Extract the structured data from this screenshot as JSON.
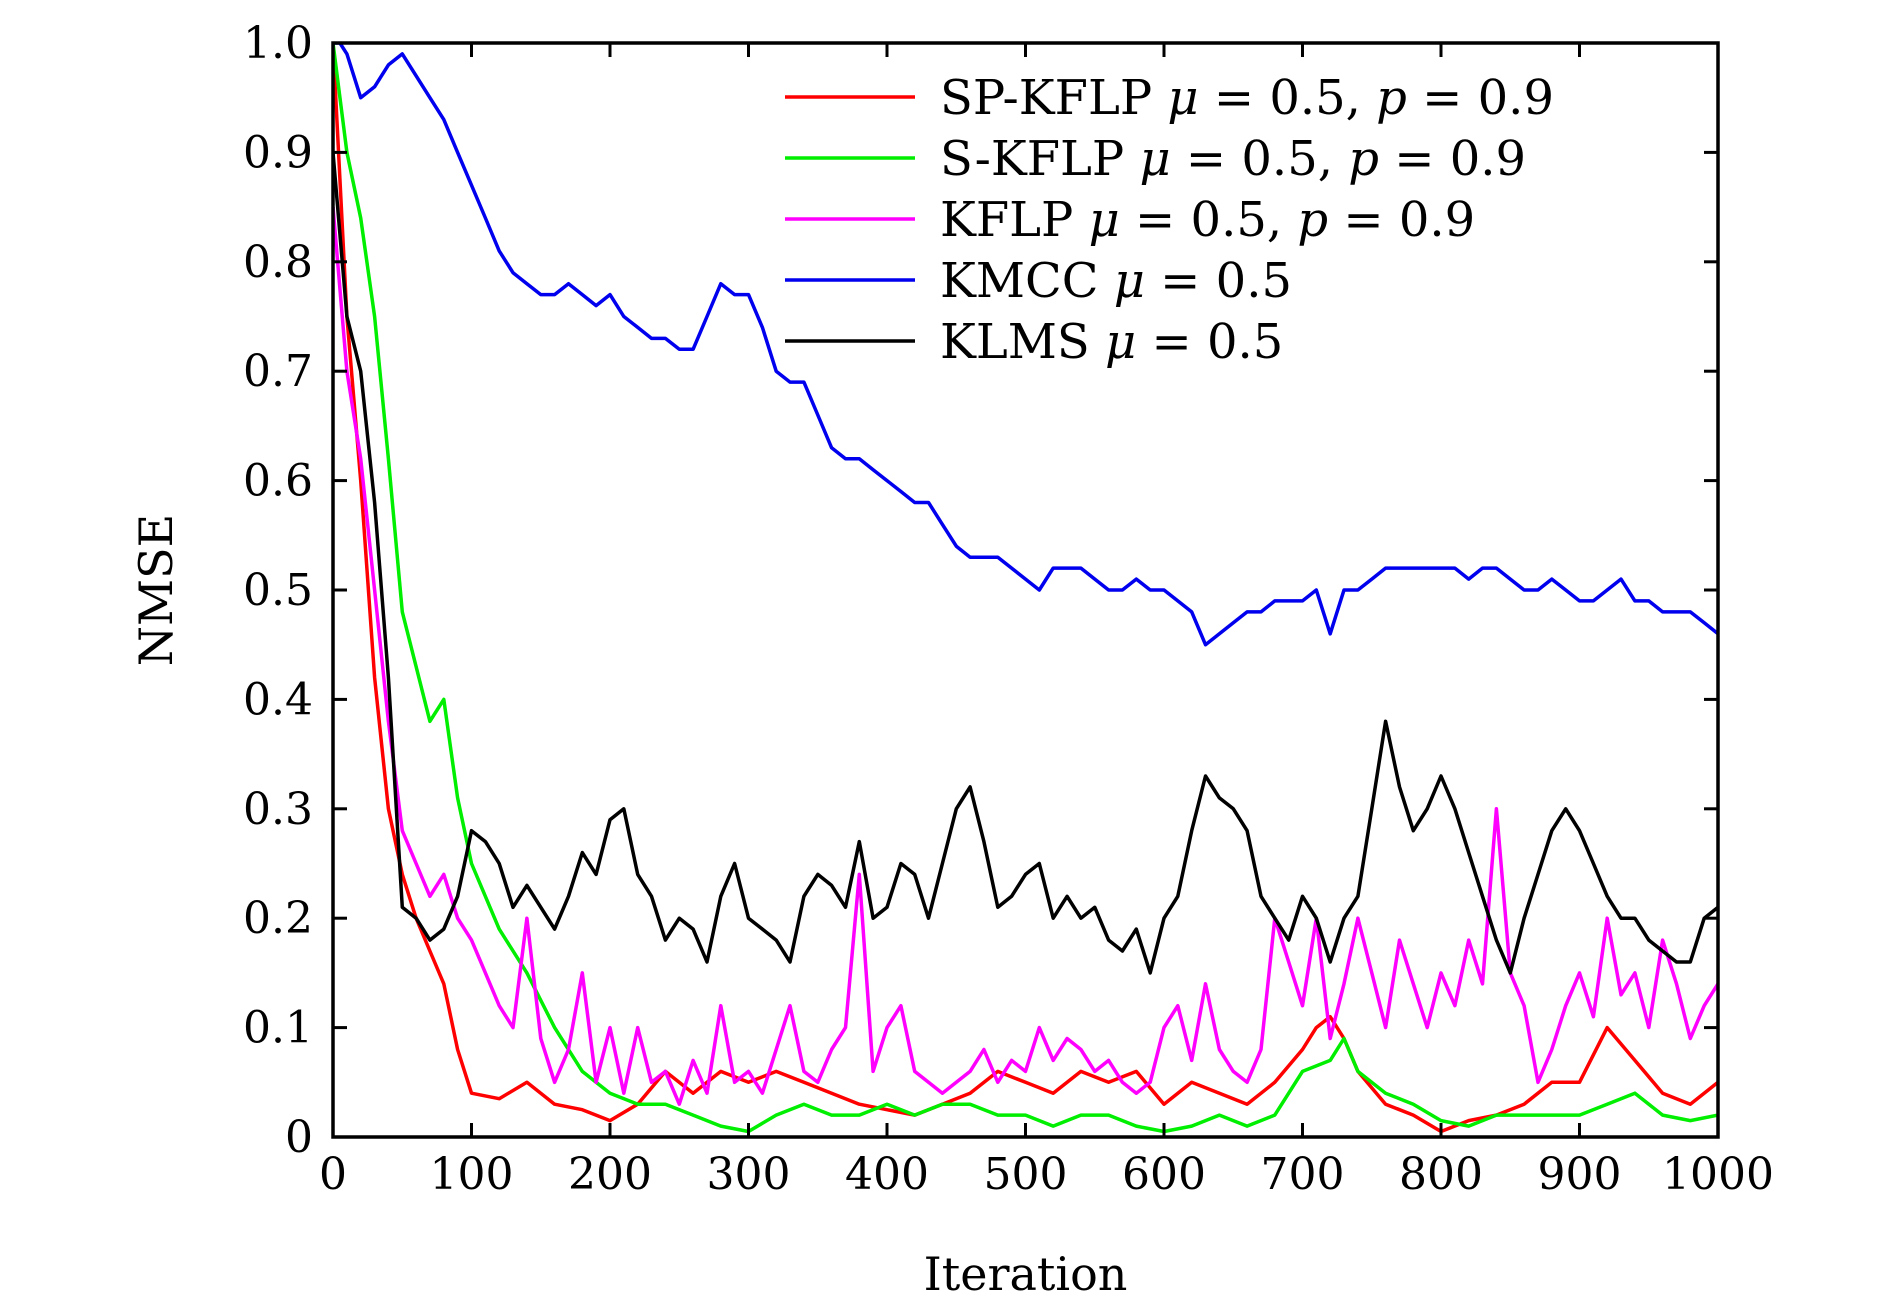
{
  "chart_data": {
    "type": "line",
    "title": "",
    "xlabel": "Iteration",
    "ylabel": "NMSE",
    "xlim": [
      0,
      1000
    ],
    "ylim": [
      0,
      1.0
    ],
    "grid": false,
    "legend_position": "top-right",
    "x_ticks": [
      0,
      100,
      200,
      300,
      400,
      500,
      600,
      700,
      800,
      900,
      1000
    ],
    "x_tick_labels": [
      "0",
      "100",
      "200",
      "300",
      "400",
      "500",
      "600",
      "700",
      "800",
      "900",
      "1000"
    ],
    "y_ticks": [
      0,
      0.1,
      0.2,
      0.3,
      0.4,
      0.5,
      0.6,
      0.7,
      0.8,
      0.9,
      1.0
    ],
    "y_tick_labels": [
      "0",
      "0.1",
      "0.2",
      "0.3",
      "0.4",
      "0.5",
      "0.6",
      "0.7",
      "0.8",
      "0.9",
      "1.0"
    ],
    "series": [
      {
        "name": "SP-KFLP",
        "legend_parts": [
          "SP-KFLP ",
          "μ",
          " = 0.5, ",
          "p",
          " = 0.9"
        ],
        "color": "#ff0000",
        "x": [
          0,
          10,
          20,
          30,
          40,
          50,
          60,
          70,
          80,
          90,
          100,
          120,
          140,
          160,
          180,
          200,
          220,
          240,
          260,
          280,
          300,
          320,
          340,
          360,
          380,
          400,
          420,
          440,
          460,
          480,
          500,
          520,
          540,
          560,
          580,
          600,
          620,
          640,
          660,
          680,
          700,
          710,
          720,
          730,
          740,
          760,
          780,
          800,
          820,
          840,
          860,
          880,
          900,
          920,
          940,
          960,
          980,
          1000
        ],
        "values": [
          1.0,
          0.75,
          0.6,
          0.42,
          0.3,
          0.24,
          0.2,
          0.17,
          0.14,
          0.08,
          0.04,
          0.035,
          0.05,
          0.03,
          0.025,
          0.015,
          0.03,
          0.06,
          0.04,
          0.06,
          0.05,
          0.06,
          0.05,
          0.04,
          0.03,
          0.025,
          0.02,
          0.03,
          0.04,
          0.06,
          0.05,
          0.04,
          0.06,
          0.05,
          0.06,
          0.03,
          0.05,
          0.04,
          0.03,
          0.05,
          0.08,
          0.1,
          0.11,
          0.09,
          0.06,
          0.03,
          0.02,
          0.005,
          0.015,
          0.02,
          0.03,
          0.05,
          0.05,
          0.1,
          0.07,
          0.04,
          0.03,
          0.05
        ]
      },
      {
        "name": "S-KFLP",
        "legend_parts": [
          "S-KFLP ",
          "μ",
          " = 0.5, ",
          "p",
          " = 0.9"
        ],
        "color": "#00ee00",
        "x": [
          0,
          10,
          20,
          30,
          40,
          50,
          60,
          70,
          80,
          90,
          100,
          120,
          140,
          160,
          180,
          200,
          220,
          240,
          260,
          280,
          300,
          320,
          340,
          360,
          380,
          400,
          420,
          440,
          460,
          480,
          500,
          520,
          540,
          560,
          580,
          600,
          620,
          640,
          660,
          680,
          700,
          720,
          730,
          740,
          760,
          780,
          800,
          820,
          840,
          860,
          880,
          900,
          920,
          940,
          960,
          980,
          1000
        ],
        "values": [
          1.0,
          0.9,
          0.84,
          0.75,
          0.62,
          0.48,
          0.43,
          0.38,
          0.4,
          0.31,
          0.25,
          0.19,
          0.15,
          0.1,
          0.06,
          0.04,
          0.03,
          0.03,
          0.02,
          0.01,
          0.005,
          0.02,
          0.03,
          0.02,
          0.02,
          0.03,
          0.02,
          0.03,
          0.03,
          0.02,
          0.02,
          0.01,
          0.02,
          0.02,
          0.01,
          0.005,
          0.01,
          0.02,
          0.01,
          0.02,
          0.06,
          0.07,
          0.09,
          0.06,
          0.04,
          0.03,
          0.015,
          0.01,
          0.02,
          0.02,
          0.02,
          0.02,
          0.03,
          0.04,
          0.02,
          0.015,
          0.02
        ]
      },
      {
        "name": "KFLP",
        "legend_parts": [
          "KFLP ",
          "μ",
          " = 0.5, ",
          "p",
          " = 0.9"
        ],
        "color": "#ff00ff",
        "x": [
          0,
          10,
          20,
          30,
          40,
          50,
          60,
          70,
          80,
          90,
          100,
          110,
          120,
          130,
          140,
          150,
          160,
          170,
          180,
          190,
          200,
          210,
          220,
          230,
          240,
          250,
          260,
          270,
          280,
          290,
          300,
          310,
          320,
          330,
          340,
          350,
          360,
          370,
          380,
          390,
          400,
          410,
          420,
          430,
          440,
          450,
          460,
          470,
          480,
          490,
          500,
          510,
          520,
          530,
          540,
          550,
          560,
          570,
          580,
          590,
          600,
          610,
          620,
          630,
          640,
          650,
          660,
          670,
          680,
          690,
          700,
          710,
          720,
          730,
          740,
          750,
          760,
          770,
          780,
          790,
          800,
          810,
          820,
          830,
          840,
          850,
          860,
          870,
          880,
          890,
          900,
          910,
          920,
          930,
          940,
          950,
          960,
          970,
          980,
          990,
          1000
        ],
        "values": [
          0.85,
          0.7,
          0.62,
          0.5,
          0.38,
          0.28,
          0.25,
          0.22,
          0.24,
          0.2,
          0.18,
          0.15,
          0.12,
          0.1,
          0.2,
          0.09,
          0.05,
          0.08,
          0.15,
          0.05,
          0.1,
          0.04,
          0.1,
          0.05,
          0.06,
          0.03,
          0.07,
          0.04,
          0.12,
          0.05,
          0.06,
          0.04,
          0.08,
          0.12,
          0.06,
          0.05,
          0.08,
          0.1,
          0.24,
          0.06,
          0.1,
          0.12,
          0.06,
          0.05,
          0.04,
          0.05,
          0.06,
          0.08,
          0.05,
          0.07,
          0.06,
          0.1,
          0.07,
          0.09,
          0.08,
          0.06,
          0.07,
          0.05,
          0.04,
          0.05,
          0.1,
          0.12,
          0.07,
          0.14,
          0.08,
          0.06,
          0.05,
          0.08,
          0.2,
          0.16,
          0.12,
          0.2,
          0.09,
          0.14,
          0.2,
          0.15,
          0.1,
          0.18,
          0.14,
          0.1,
          0.15,
          0.12,
          0.18,
          0.14,
          0.3,
          0.15,
          0.12,
          0.05,
          0.08,
          0.12,
          0.15,
          0.11,
          0.2,
          0.13,
          0.15,
          0.1,
          0.18,
          0.14,
          0.09,
          0.12,
          0.14
        ]
      },
      {
        "name": "KMCC",
        "legend_parts": [
          "KMCC ",
          "μ",
          " = 0.5"
        ],
        "color": "#0000ee",
        "x": [
          0,
          5,
          10,
          20,
          30,
          40,
          50,
          60,
          70,
          80,
          90,
          100,
          110,
          120,
          130,
          140,
          150,
          160,
          170,
          180,
          190,
          200,
          210,
          220,
          230,
          240,
          250,
          260,
          270,
          280,
          290,
          300,
          310,
          320,
          330,
          340,
          350,
          360,
          370,
          380,
          390,
          400,
          410,
          420,
          430,
          440,
          450,
          460,
          470,
          480,
          490,
          500,
          510,
          520,
          530,
          540,
          550,
          560,
          570,
          580,
          590,
          600,
          610,
          620,
          630,
          640,
          650,
          660,
          670,
          680,
          690,
          700,
          710,
          720,
          730,
          740,
          750,
          760,
          770,
          780,
          790,
          800,
          810,
          820,
          830,
          840,
          850,
          860,
          870,
          880,
          890,
          900,
          910,
          920,
          930,
          940,
          950,
          960,
          970,
          980,
          990,
          1000
        ],
        "values": [
          1.0,
          1.0,
          0.99,
          0.95,
          0.96,
          0.98,
          0.99,
          0.97,
          0.95,
          0.93,
          0.9,
          0.87,
          0.84,
          0.81,
          0.79,
          0.78,
          0.77,
          0.77,
          0.78,
          0.77,
          0.76,
          0.77,
          0.75,
          0.74,
          0.73,
          0.73,
          0.72,
          0.72,
          0.75,
          0.78,
          0.77,
          0.77,
          0.74,
          0.7,
          0.69,
          0.69,
          0.66,
          0.63,
          0.62,
          0.62,
          0.61,
          0.6,
          0.59,
          0.58,
          0.58,
          0.56,
          0.54,
          0.53,
          0.53,
          0.53,
          0.52,
          0.51,
          0.5,
          0.52,
          0.52,
          0.52,
          0.51,
          0.5,
          0.5,
          0.51,
          0.5,
          0.5,
          0.49,
          0.48,
          0.45,
          0.46,
          0.47,
          0.48,
          0.48,
          0.49,
          0.49,
          0.49,
          0.5,
          0.46,
          0.5,
          0.5,
          0.51,
          0.52,
          0.52,
          0.52,
          0.52,
          0.52,
          0.52,
          0.51,
          0.52,
          0.52,
          0.51,
          0.5,
          0.5,
          0.51,
          0.5,
          0.49,
          0.49,
          0.5,
          0.51,
          0.49,
          0.49,
          0.48,
          0.48,
          0.48,
          0.47,
          0.46
        ]
      },
      {
        "name": "KLMS",
        "legend_parts": [
          "KLMS ",
          "μ",
          " = 0.5"
        ],
        "color": "#000000",
        "x": [
          0,
          10,
          20,
          30,
          40,
          50,
          60,
          70,
          80,
          90,
          100,
          110,
          120,
          130,
          140,
          150,
          160,
          170,
          180,
          190,
          200,
          210,
          220,
          230,
          240,
          250,
          260,
          270,
          280,
          290,
          300,
          310,
          320,
          330,
          340,
          350,
          360,
          370,
          380,
          390,
          400,
          410,
          420,
          430,
          440,
          450,
          460,
          470,
          480,
          490,
          500,
          510,
          520,
          530,
          540,
          550,
          560,
          570,
          580,
          590,
          600,
          610,
          620,
          630,
          640,
          650,
          660,
          670,
          680,
          690,
          700,
          710,
          720,
          730,
          740,
          750,
          760,
          770,
          780,
          790,
          800,
          810,
          820,
          830,
          840,
          850,
          860,
          870,
          880,
          890,
          900,
          910,
          920,
          930,
          940,
          950,
          960,
          970,
          980,
          990,
          1000
        ],
        "values": [
          0.9,
          0.75,
          0.7,
          0.58,
          0.42,
          0.21,
          0.2,
          0.18,
          0.19,
          0.22,
          0.28,
          0.27,
          0.25,
          0.21,
          0.23,
          0.21,
          0.19,
          0.22,
          0.26,
          0.24,
          0.29,
          0.3,
          0.24,
          0.22,
          0.18,
          0.2,
          0.19,
          0.16,
          0.22,
          0.25,
          0.2,
          0.19,
          0.18,
          0.16,
          0.22,
          0.24,
          0.23,
          0.21,
          0.27,
          0.2,
          0.21,
          0.25,
          0.24,
          0.2,
          0.25,
          0.3,
          0.32,
          0.27,
          0.21,
          0.22,
          0.24,
          0.25,
          0.2,
          0.22,
          0.2,
          0.21,
          0.18,
          0.17,
          0.19,
          0.15,
          0.2,
          0.22,
          0.28,
          0.33,
          0.31,
          0.3,
          0.28,
          0.22,
          0.2,
          0.18,
          0.22,
          0.2,
          0.16,
          0.2,
          0.22,
          0.3,
          0.38,
          0.32,
          0.28,
          0.3,
          0.33,
          0.3,
          0.26,
          0.22,
          0.18,
          0.15,
          0.2,
          0.24,
          0.28,
          0.3,
          0.28,
          0.25,
          0.22,
          0.2,
          0.2,
          0.18,
          0.17,
          0.16,
          0.16,
          0.2,
          0.21
        ]
      }
    ]
  }
}
